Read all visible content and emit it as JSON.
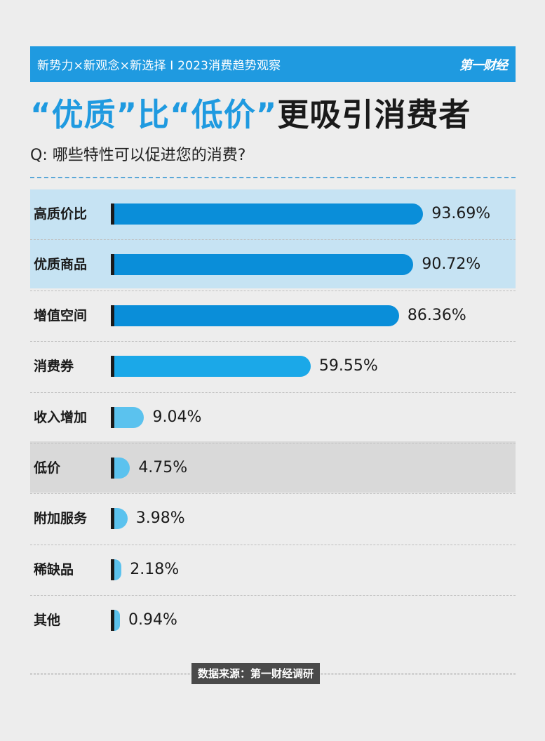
{
  "header": {
    "banner_text": "新势力×新观念×新选择 I 2023消费趋势观察",
    "logo_text": "第一财经"
  },
  "headline": {
    "part1": "“优质”比“低价”",
    "part2": "更吸引消费者"
  },
  "question": "Q: 哪些特性可以促进您的消费?",
  "source": "数据来源：第一财经调研",
  "colors": {
    "accent": "#1f9ae0",
    "bar_dark": "#0a8ed9",
    "bar_mid": "#1ba8e8",
    "bar_light": "#5bc2ee",
    "highlight_blue_band": "#c6e3f3",
    "highlight_gray_band": "#d9d9d9"
  },
  "chart_data": {
    "type": "bar",
    "orientation": "horizontal",
    "value_unit": "%",
    "categories": [
      "高质价比",
      "优质商品",
      "增值空间",
      "消费券",
      "收入增加",
      "低价",
      "附加服务",
      "稀缺品",
      "其他"
    ],
    "values": [
      93.69,
      90.72,
      86.36,
      59.55,
      9.04,
      4.75,
      3.98,
      2.18,
      0.94
    ],
    "labels": [
      "93.69%",
      "90.72%",
      "86.36%",
      "59.55%",
      "9.04%",
      "4.75%",
      "3.98%",
      "2.18%",
      "0.94%"
    ],
    "xlim": [
      0,
      100
    ],
    "grid": false,
    "legend": "none",
    "highlighted_rows": {
      "blue": [
        "高质价比",
        "优质商品"
      ],
      "gray": [
        "低价"
      ]
    }
  }
}
